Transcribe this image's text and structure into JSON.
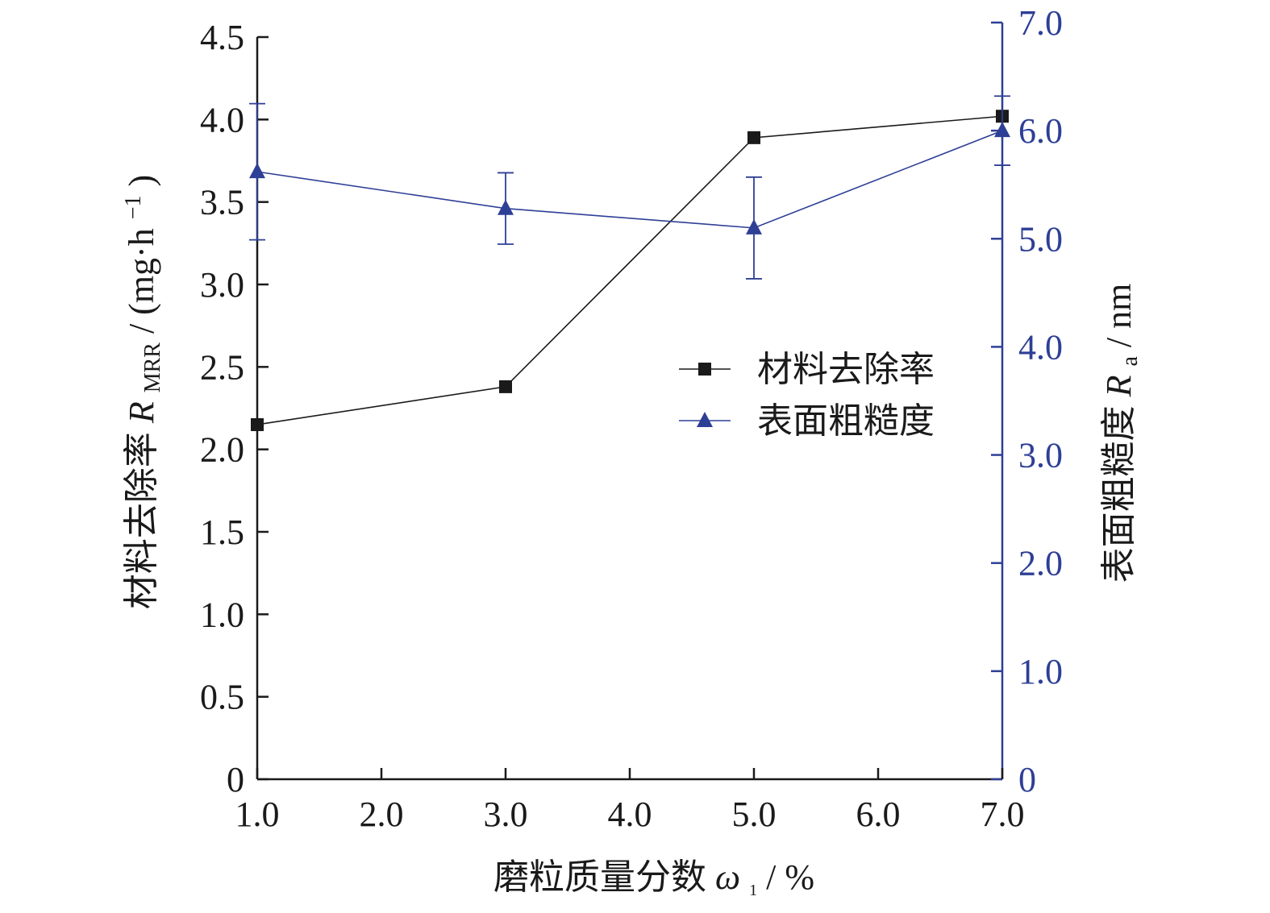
{
  "chart_data": {
    "type": "line",
    "x": [
      1.0,
      3.0,
      5.0,
      7.0
    ],
    "x_ticks": [
      "1.0",
      "2.0",
      "3.0",
      "4.0",
      "5.0",
      "6.0",
      "7.0"
    ],
    "x_tick_values": [
      1,
      2,
      3,
      4,
      5,
      6,
      7
    ],
    "xlim": [
      1.0,
      7.0
    ],
    "xlabel_text": "磨粒质量分数",
    "xlabel_symbol": "ω",
    "xlabel_subscript": "1",
    "xlabel_unit": " / %",
    "y_left": {
      "ylim": [
        0,
        4.5
      ],
      "ticks": [
        "0",
        "0.5",
        "1.0",
        "1.5",
        "2.0",
        "2.5",
        "3.0",
        "3.5",
        "4.0",
        "4.5"
      ],
      "tick_values": [
        0,
        0.5,
        1.0,
        1.5,
        2.0,
        2.5,
        3.0,
        3.5,
        4.0,
        4.5
      ],
      "label_text": "材料去除率 ",
      "label_symbol": "R",
      "label_subscript": "MRR",
      "label_unit_open": " / (mg·h",
      "label_unit_sup": "−1",
      "label_unit_close": ")",
      "color": "#1a1a1a"
    },
    "y_right": {
      "ylim": [
        0,
        7.0
      ],
      "ticks": [
        "0",
        "1.0",
        "2.0",
        "3.0",
        "4.0",
        "5.0",
        "6.0",
        "7.0"
      ],
      "tick_values": [
        0,
        1,
        2,
        3,
        4,
        5,
        6,
        7
      ],
      "label_text": "表面粗糙度 ",
      "label_symbol": "R",
      "label_subscript": "a",
      "label_unit": " / nm",
      "color": "#2e3f96"
    },
    "series": [
      {
        "name": "材料去除率",
        "axis": "left",
        "marker": "square",
        "color": "#1a1a1a",
        "values": [
          2.15,
          2.38,
          3.89,
          4.02
        ],
        "errors": [
          null,
          null,
          null,
          null
        ]
      },
      {
        "name": "表面粗糙度",
        "axis": "right",
        "marker": "triangle",
        "color": "#2e3f96",
        "values": [
          5.62,
          5.28,
          5.1,
          6.0
        ],
        "errors": [
          0.63,
          0.33,
          0.47,
          0.32
        ]
      }
    ],
    "legend_position": "center-right",
    "grid": false
  }
}
